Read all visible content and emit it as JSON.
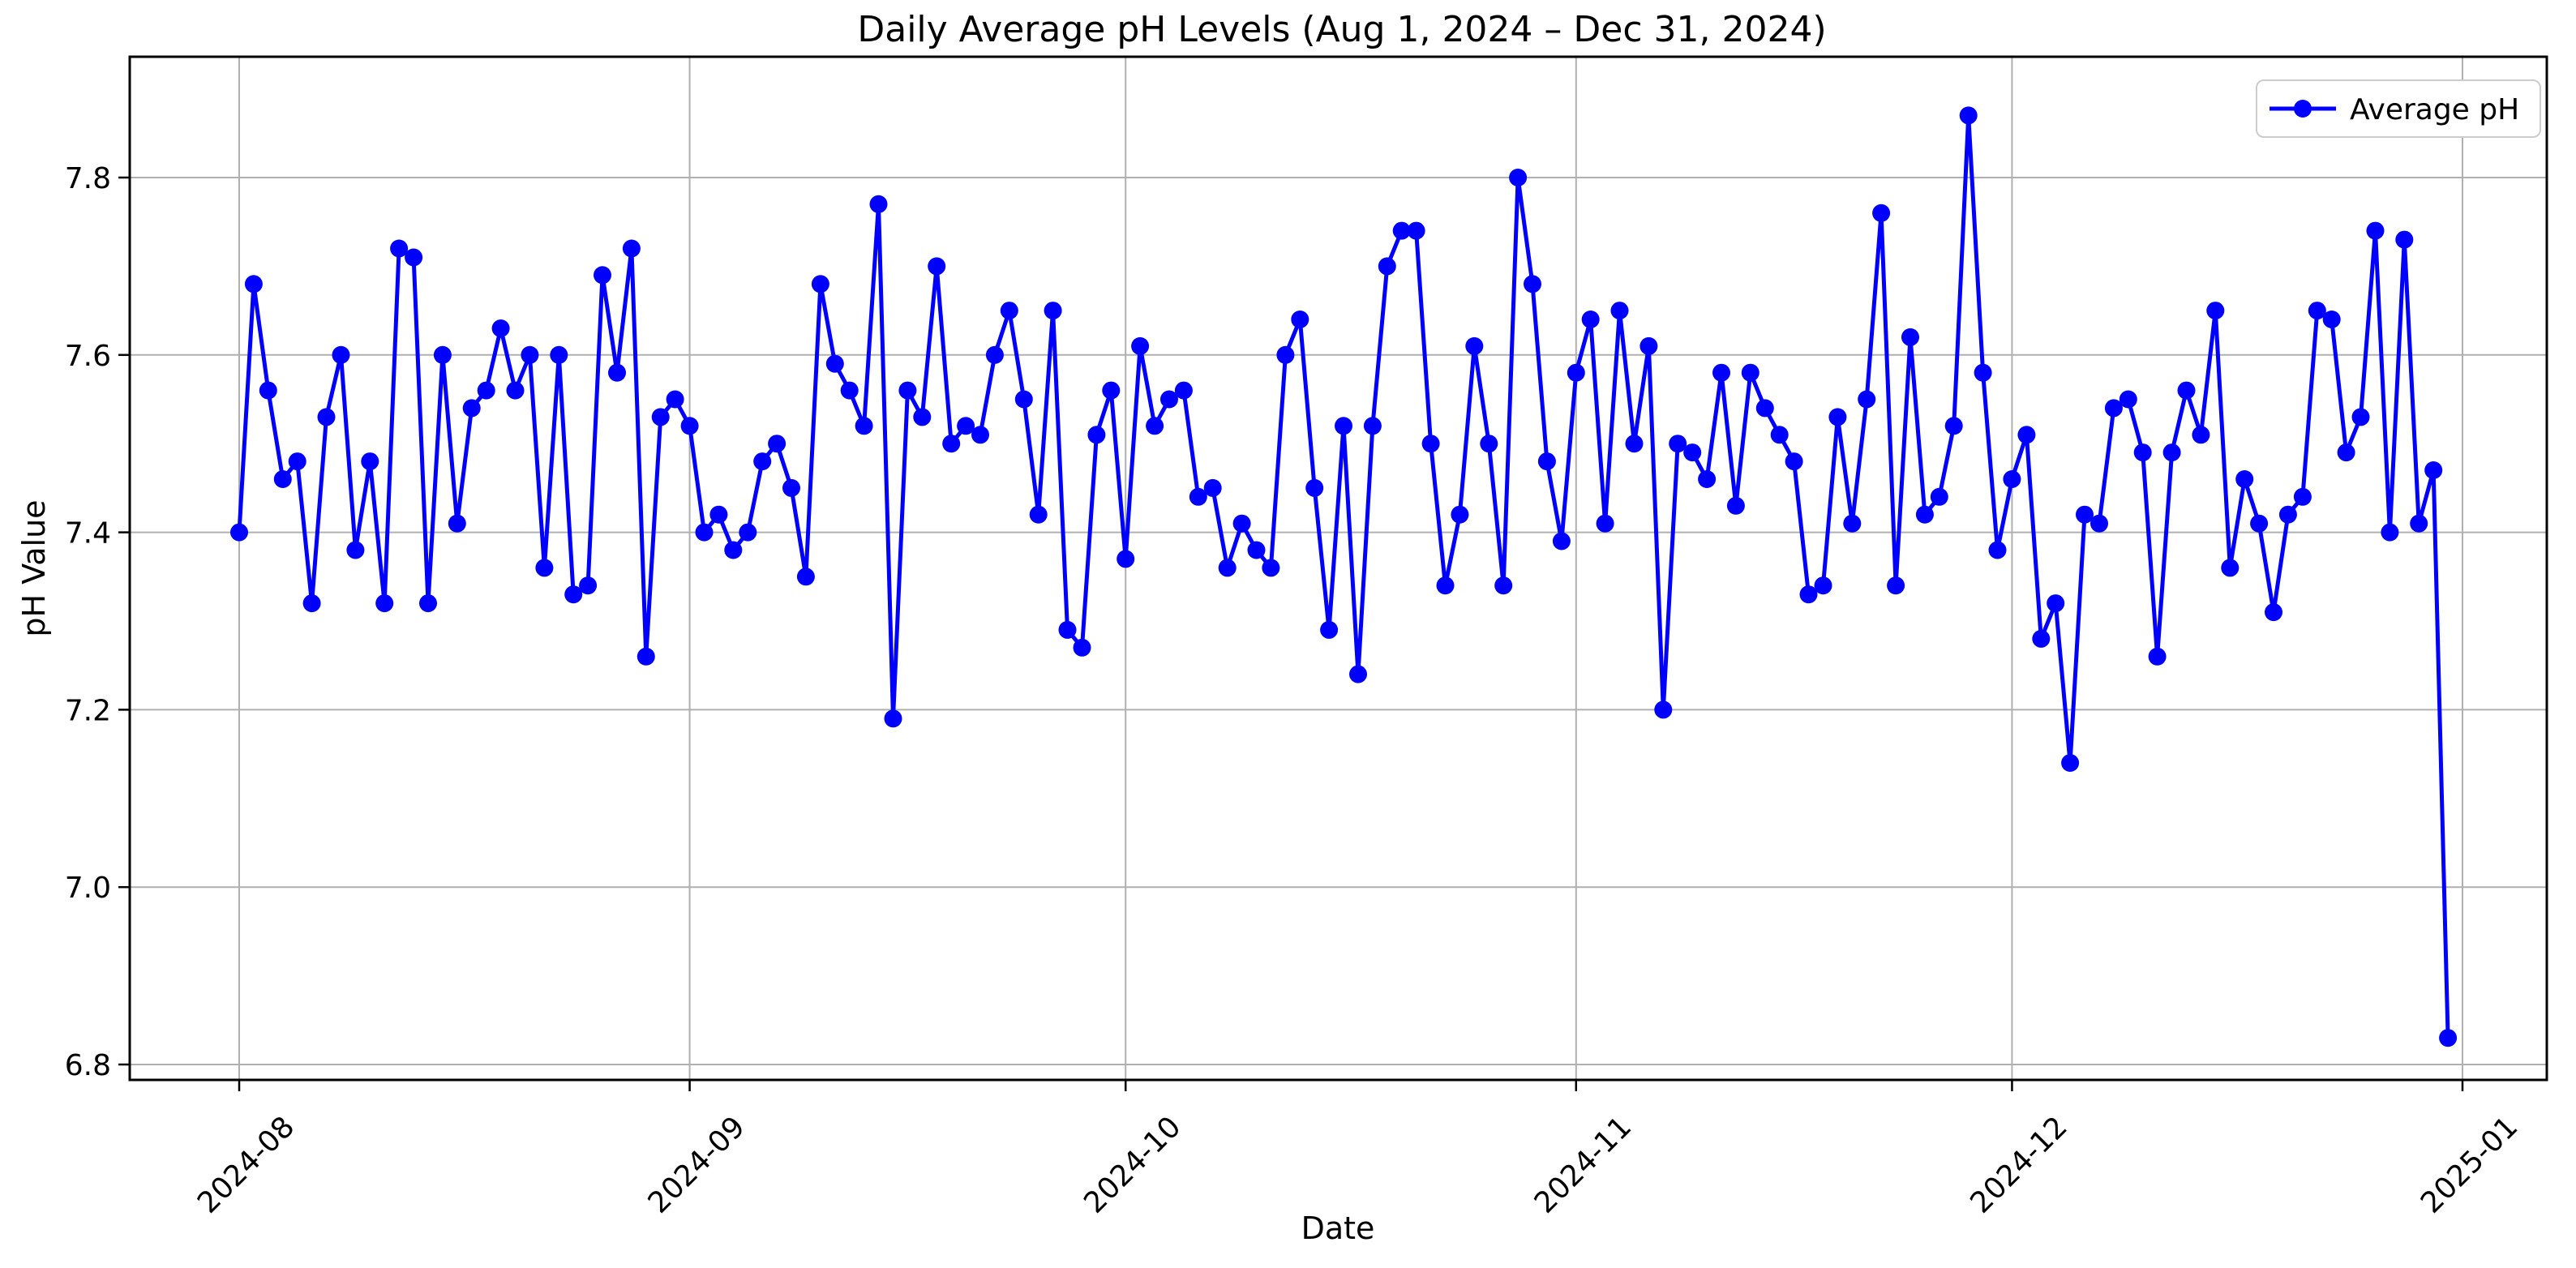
{
  "chart_data": {
    "type": "line",
    "title": "Daily Average pH Levels (Aug 1, 2024 – Dec 31, 2024)",
    "xlabel": "Date",
    "ylabel": "pH Value",
    "grid": true,
    "legend_position": "upper right",
    "marker": "o",
    "x_unit": "day",
    "x_start": "2024-08-01",
    "x_end": "2024-12-31",
    "x_tick_labels": [
      "2024-08",
      "2024-09",
      "2024-10",
      "2024-11",
      "2024-12",
      "2025-01"
    ],
    "x_tick_day_offsets": [
      0,
      31,
      61,
      92,
      122,
      153
    ],
    "y_ticks": [
      6.8,
      7.0,
      7.2,
      7.4,
      7.6,
      7.8
    ],
    "ylim": [
      6.78,
      7.94
    ],
    "colors": {
      "series": "#0000ff",
      "grid": "#b0b0b0",
      "spine": "#000000",
      "text": "#000000",
      "legend_border": "#cccccc",
      "background": "#ffffff"
    },
    "series": [
      {
        "name": "Average pH",
        "color": "#0000ff",
        "values": [
          7.4,
          7.68,
          7.56,
          7.46,
          7.48,
          7.32,
          7.53,
          7.6,
          7.38,
          7.48,
          7.32,
          7.72,
          7.71,
          7.32,
          7.6,
          7.41,
          7.54,
          7.56,
          7.63,
          7.56,
          7.6,
          7.36,
          7.6,
          7.33,
          7.34,
          7.69,
          7.58,
          7.72,
          7.26,
          7.53,
          7.55,
          7.52,
          7.4,
          7.42,
          7.38,
          7.4,
          7.48,
          7.5,
          7.45,
          7.35,
          7.68,
          7.59,
          7.56,
          7.52,
          7.77,
          7.19,
          7.56,
          7.53,
          7.7,
          7.5,
          7.52,
          7.51,
          7.6,
          7.65,
          7.55,
          7.42,
          7.65,
          7.29,
          7.27,
          7.51,
          7.56,
          7.37,
          7.61,
          7.52,
          7.55,
          7.56,
          7.44,
          7.45,
          7.36,
          7.41,
          7.38,
          7.36,
          7.6,
          7.64,
          7.45,
          7.29,
          7.52,
          7.24,
          7.52,
          7.7,
          7.74,
          7.74,
          7.5,
          7.34,
          7.42,
          7.61,
          7.5,
          7.34,
          7.8,
          7.68,
          7.48,
          7.39,
          7.58,
          7.64,
          7.41,
          7.65,
          7.5,
          7.61,
          7.2,
          7.5,
          7.49,
          7.46,
          7.58,
          7.43,
          7.58,
          7.54,
          7.51,
          7.48,
          7.33,
          7.34,
          7.53,
          7.41,
          7.55,
          7.76,
          7.34,
          7.62,
          7.42,
          7.44,
          7.52,
          7.87,
          7.58,
          7.38,
          7.46,
          7.51,
          7.28,
          7.32,
          7.14,
          7.42,
          7.41,
          7.54,
          7.55,
          7.49,
          7.26,
          7.49,
          7.56,
          7.51,
          7.65,
          7.36,
          7.46,
          7.41,
          7.31,
          7.42,
          7.44,
          7.65,
          7.64,
          7.49,
          7.53,
          7.74,
          7.4,
          7.73,
          7.41,
          7.47,
          6.83
        ]
      }
    ]
  }
}
